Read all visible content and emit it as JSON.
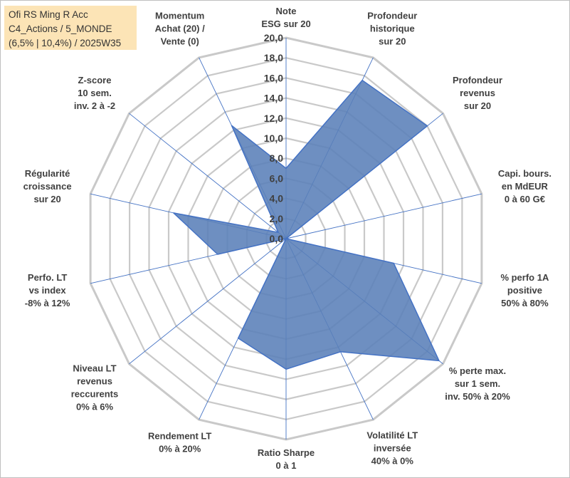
{
  "title_box": {
    "line1": "Ofi RS Ming R Acc",
    "line2": "C4_Actions / 5_MONDE",
    "line3": "(6,5% | 10,4%) / 2025W35"
  },
  "colors": {
    "grid": "#c9c9c9",
    "spoke": "#4472c4",
    "fill": "#5a7fb8",
    "stroke": "#4472c4",
    "title_bg": "#fce4b6",
    "text": "#404040"
  },
  "chart_data": {
    "type": "radar",
    "r_range": [
      0,
      20
    ],
    "r_ticks": [
      "0,0",
      "2,0",
      "4,0",
      "6,0",
      "8,0",
      "10,0",
      "12,0",
      "14,0",
      "16,0",
      "18,0",
      "20,0"
    ],
    "grid": true,
    "axes": [
      {
        "lines": [
          "Note",
          "ESG sur 20"
        ]
      },
      {
        "lines": [
          "Profondeur",
          "historique",
          "sur 20"
        ]
      },
      {
        "lines": [
          "Profondeur",
          "revenus",
          "sur 20"
        ]
      },
      {
        "lines": [
          "Capi. bours.",
          "en MdEUR",
          "0 à 60 G€"
        ]
      },
      {
        "lines": [
          "% perfo 1A",
          "positive",
          "50% à 80%"
        ]
      },
      {
        "lines": [
          "% perte max.",
          "sur 1 sem.",
          "inv. 50% à 20%"
        ]
      },
      {
        "lines": [
          "Volatilité LT",
          "inversée",
          "40% à 0%"
        ]
      },
      {
        "lines": [
          "Ratio Sharpe",
          "0 à 1"
        ]
      },
      {
        "lines": [
          "Rendement LT",
          "0% à 20%"
        ]
      },
      {
        "lines": [
          "Niveau LT",
          "revenus",
          "reccurents",
          "0% à 6%"
        ]
      },
      {
        "lines": [
          "Perfo. LT",
          "vs index",
          "-8% à 12%"
        ]
      },
      {
        "lines": [
          "Régularité",
          "croissance",
          "sur 20"
        ]
      },
      {
        "lines": [
          "Z-score",
          "10 sem.",
          "inv. 2 à -2"
        ]
      },
      {
        "lines": [
          "Momentum",
          "Achat (20) /",
          "Vente (0)"
        ]
      }
    ],
    "series": [
      {
        "values": [
          7.0,
          17.5,
          18.0,
          0.0,
          11.0,
          19.5,
          12.5,
          13.0,
          11.0,
          0.0,
          7.0,
          11.5,
          1.0,
          12.5
        ]
      }
    ]
  }
}
